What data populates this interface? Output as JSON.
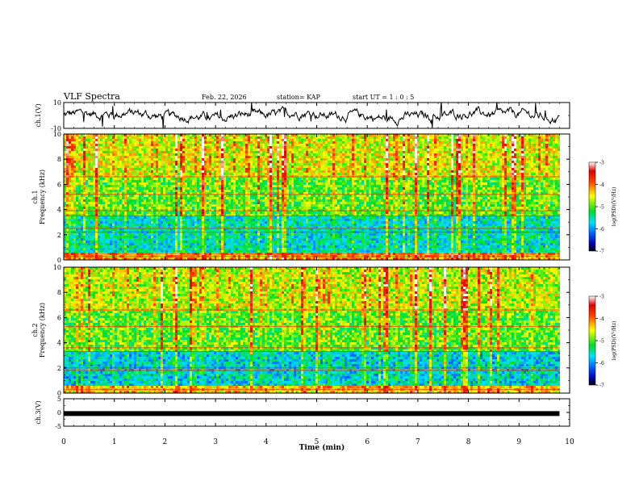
{
  "header": {
    "title": "VLF Spectra",
    "date": "Feb. 22, 2026",
    "station": "station= KAP",
    "start": "start  UT =   1 : 0  : 5"
  },
  "chart_data": [
    {
      "type": "line",
      "name": "ch1-waveform",
      "ylabel": "ch.1(V)",
      "ylim": [
        -10,
        10
      ],
      "yticks": [
        10,
        -10
      ],
      "xlim": [
        0,
        10
      ],
      "data_until": 9.8,
      "description_values": "noisy voltage trace centred near 0 V, amplitude about ±5 V"
    },
    {
      "type": "heatmap",
      "name": "ch1-spectrogram",
      "ylabel": "ch.1\nFrequency  (kHz)",
      "ylim": [
        0,
        10
      ],
      "yticks": [
        0,
        2,
        4,
        6,
        8,
        10
      ],
      "xlim": [
        0,
        10
      ],
      "data_until": 9.8,
      "colorbar": {
        "label": "log(PSD)(V²/Hz)",
        "range": [
          -7,
          -3
        ],
        "ticks": [
          -3,
          -4,
          -5,
          -6,
          -7
        ]
      },
      "bands_khz": [
        {
          "from": 0,
          "to": 0.6,
          "level": -4.2
        },
        {
          "from": 0.6,
          "to": 3.5,
          "level": -5.6
        },
        {
          "from": 3.5,
          "to": 6.5,
          "level": -5.0
        },
        {
          "from": 6.5,
          "to": 10,
          "level": -4.6
        }
      ],
      "lines_khz": [
        0.3,
        0.5,
        2.2,
        2.5,
        3.5,
        3.9,
        5.2,
        6.6
      ]
    },
    {
      "type": "heatmap",
      "name": "ch2-spectrogram",
      "ylabel": "ch.2\nFrequency  (kHz)",
      "ylim": [
        0,
        10
      ],
      "yticks": [
        0,
        2,
        4,
        6,
        8,
        10
      ],
      "xlim": [
        0,
        10
      ],
      "data_until": 9.8,
      "colorbar": {
        "label": "log(PSD)(V²/Hz)",
        "range": [
          -7,
          -3
        ],
        "ticks": [
          -3,
          -4,
          -5,
          -6,
          -7
        ]
      },
      "bands_khz": [
        {
          "from": 0,
          "to": 0.6,
          "level": -4.4
        },
        {
          "from": 0.6,
          "to": 3.3,
          "level": -5.7
        },
        {
          "from": 3.3,
          "to": 6.5,
          "level": -5.0
        },
        {
          "from": 6.5,
          "to": 10,
          "level": -4.7
        }
      ],
      "lines_khz": [
        0.3,
        1.8,
        2.0,
        3.3,
        3.6,
        5.3,
        6.6
      ]
    },
    {
      "type": "line",
      "name": "ch3-trace",
      "ylabel": "ch.3(V)",
      "ylim": [
        -5,
        5
      ],
      "yticks": [
        5,
        0,
        -5
      ],
      "xlim": [
        0,
        10
      ],
      "data_until": 9.8,
      "value_v": -0.4
    }
  ],
  "xaxis": {
    "label": "Time  (min)",
    "ticks": [
      "0",
      "1",
      "2",
      "3",
      "4",
      "5",
      "6",
      "7",
      "8",
      "9",
      "10"
    ]
  }
}
